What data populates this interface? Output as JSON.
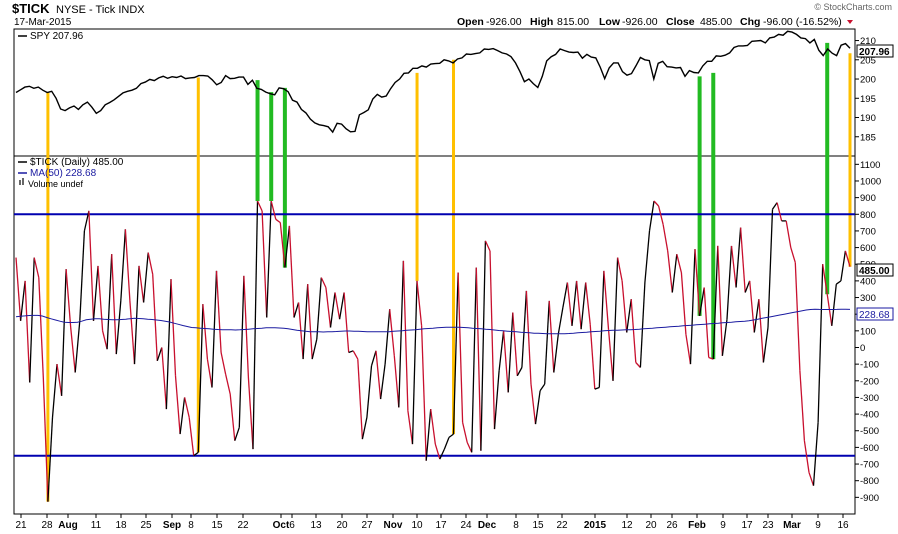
{
  "header": {
    "symbol": "$TICK",
    "description": "NYSE - Tick INDX",
    "date": "17-Mar-2015",
    "open_label": "Open",
    "open_value": "-926.00",
    "high_label": "High",
    "high_value": "815.00",
    "low_label": "Low",
    "low_value": "-926.00",
    "close_label": "Close",
    "close_value": "485.00",
    "chg_label": "Chg",
    "chg_value": "-96.00 (-16.52%)",
    "watermark": "© StockCharts.com"
  },
  "legend": {
    "spy": "SPY 207.96",
    "tick": "$TICK (Daily) 485.00",
    "ma": "MA(50) 228.68",
    "volume": "Volume undef"
  },
  "colors": {
    "frame": "#000000",
    "spy_line": "#000000",
    "tick_up": "#000000",
    "tick_down": "#c8102e",
    "ma_line": "#1a1aa0",
    "hline": "#0000b0",
    "marker_yellow": "#ffc000",
    "marker_green": "#22bb22",
    "grid": "#e6e6e6"
  },
  "chart_data": {
    "type": "line",
    "x_ticks": [
      "21",
      "28",
      "Aug",
      "11",
      "18",
      "25",
      "Sep",
      "8",
      "15",
      "22",
      "Oct",
      "6",
      "13",
      "20",
      "27",
      "Nov",
      "10",
      "17",
      "24",
      "Dec",
      "8",
      "15",
      "22",
      "2015",
      "12",
      "20",
      "26",
      "Feb",
      "9",
      "17",
      "23",
      "Mar",
      "9",
      "16"
    ],
    "upper": {
      "series_name": "SPY",
      "last_value": "207.96",
      "ylim": [
        180,
        213
      ],
      "y_ticks": [
        "185",
        "190",
        "195",
        "200",
        "205",
        "210"
      ],
      "values": [
        196.5,
        197.2,
        197.9,
        198.1,
        197.6,
        197.9,
        197.1,
        196.5,
        196.8,
        195.0,
        192.2,
        191.8,
        192.5,
        193.0,
        192.1,
        193.3,
        194.0,
        192.7,
        191.1,
        191.8,
        193.3,
        193.9,
        194.6,
        195.5,
        196.4,
        196.8,
        197.1,
        197.6,
        198.8,
        199.2,
        199.9,
        199.6,
        200.3,
        200.7,
        200.2,
        200.6,
        200.4,
        200.8,
        200.1,
        200.3,
        200.4,
        200.9,
        200.9,
        200.8,
        199.8,
        198.5,
        199.1,
        200.9,
        200.1,
        200.2,
        200.5,
        200.5,
        198.6,
        199.7,
        197.6,
        197.3,
        196.6,
        196.2,
        195.9,
        197.7,
        197.5,
        196.7,
        194.5,
        194.0,
        192.1,
        191.2,
        189.6,
        188.6,
        188.1,
        187.9,
        187.6,
        186.2,
        188.5,
        188.3,
        187.1,
        186.3,
        186.4,
        190.7,
        191.3,
        192.0,
        194.8,
        196.0,
        195.3,
        195.6,
        197.5,
        199.1,
        200.0,
        201.5,
        201.6,
        202.8,
        202.8,
        203.4,
        203.1,
        203.9,
        204.0,
        204.1,
        205.0,
        204.7,
        204.2,
        205.2,
        205.5,
        206.5,
        206.4,
        206.6,
        206.8,
        207.8,
        207.7,
        207.9,
        207.4,
        206.8,
        206.5,
        205.8,
        204.2,
        201.9,
        199.3,
        200.0,
        198.8,
        197.8,
        200.7,
        204.7,
        205.8,
        206.4,
        207.8,
        207.4,
        207.0,
        206.9,
        207.0,
        205.4,
        206.4,
        205.7,
        205.5,
        203.1,
        200.1,
        202.9,
        204.2,
        204.2,
        201.9,
        201.0,
        201.4,
        203.4,
        205.6,
        205.0,
        204.8,
        200.0,
        204.1,
        204.6,
        203.2,
        203.1,
        202.9,
        203.0,
        200.7,
        202.2,
        201.7,
        201.6,
        203.4,
        204.6,
        204.6,
        206.0,
        205.9,
        206.2,
        206.8,
        208.2,
        208.6,
        208.6,
        208.7,
        209.8,
        209.9,
        210.0,
        209.4,
        210.7,
        210.9,
        211.6,
        211.4,
        212.4,
        212.2,
        211.6,
        210.7,
        210.5,
        209.4,
        210.3,
        207.5,
        206.1,
        207.8,
        206.7,
        206.1,
        208.8,
        209.2,
        208.0
      ]
    },
    "lower": {
      "series_name": "$TICK (Daily)",
      "last_value": "485.00",
      "ma_name": "MA(50)",
      "ma_last": "228.68",
      "ylim": [
        -1000,
        1150
      ],
      "y_ticks": [
        "1100",
        "1000",
        "900",
        "800",
        "700",
        "600",
        "500",
        "400",
        "300",
        "200",
        "100",
        "0",
        "-100",
        "-200",
        "-300",
        "-400",
        "-500",
        "-600",
        "-700",
        "-800",
        "-900"
      ],
      "hlines": [
        800,
        -650
      ],
      "values": [
        540,
        160,
        400,
        -210,
        540,
        420,
        -180,
        -926,
        -420,
        -100,
        -290,
        470,
        120,
        -150,
        160,
        700,
        820,
        160,
        490,
        100,
        -10,
        560,
        -40,
        280,
        710,
        280,
        -100,
        490,
        270,
        570,
        440,
        -80,
        0,
        -370,
        410,
        -170,
        -520,
        -300,
        -420,
        -650,
        -630,
        260,
        -70,
        -240,
        460,
        -30,
        -160,
        -280,
        -560,
        -480,
        430,
        -180,
        -610,
        880,
        820,
        180,
        880,
        770,
        750,
        480,
        730,
        180,
        270,
        -70,
        380,
        -70,
        50,
        420,
        360,
        120,
        330,
        170,
        330,
        -30,
        -20,
        -70,
        -550,
        -420,
        -110,
        -20,
        -310,
        -100,
        230,
        -50,
        -360,
        520,
        -380,
        -580,
        400,
        130,
        -680,
        -370,
        -580,
        -670,
        -610,
        -540,
        -520,
        450,
        -450,
        -570,
        -630,
        480,
        -620,
        640,
        580,
        -490,
        -140,
        100,
        -270,
        210,
        -170,
        -120,
        340,
        -220,
        -460,
        -260,
        -220,
        280,
        -150,
        80,
        240,
        390,
        130,
        400,
        110,
        390,
        140,
        -250,
        -240,
        460,
        110,
        -200,
        540,
        400,
        90,
        290,
        -90,
        -120,
        390,
        700,
        880,
        850,
        740,
        580,
        330,
        560,
        450,
        80,
        -100,
        590,
        190,
        360,
        -60,
        -70,
        610,
        -50,
        170,
        610,
        360,
        720,
        330,
        400,
        90,
        290,
        -90,
        120,
        830,
        870,
        760,
        760,
        600,
        510,
        -140,
        -560,
        -750,
        -830,
        -450,
        500,
        320,
        130,
        380,
        400,
        580,
        485
      ],
      "ma_values": [
        185,
        188,
        190,
        192,
        193,
        193,
        189,
        180,
        172,
        165,
        158,
        152,
        150,
        150,
        152,
        158,
        166,
        170,
        172,
        172,
        170,
        168,
        167,
        166,
        168,
        170,
        173,
        175,
        174,
        172,
        170,
        168,
        165,
        162,
        158,
        153,
        146,
        139,
        132,
        126,
        120,
        118,
        116,
        114,
        112,
        110,
        108,
        107,
        106,
        106,
        105,
        106,
        108,
        110,
        112,
        114,
        116,
        118,
        118,
        118,
        117,
        115,
        112,
        108,
        104,
        100,
        97,
        95,
        94,
        94,
        93,
        94,
        95,
        96,
        98,
        99,
        99,
        98,
        97,
        96,
        95,
        94,
        94,
        94,
        94,
        95,
        97,
        99,
        101,
        103,
        105,
        107,
        110,
        112,
        114,
        116,
        118,
        120,
        121,
        122,
        122,
        121,
        120,
        118,
        116,
        114,
        112,
        110,
        108,
        105,
        102,
        100,
        98,
        96,
        94,
        92,
        90,
        88,
        86,
        85,
        84,
        83,
        82,
        82,
        82,
        83,
        84,
        86,
        88,
        90,
        92,
        94,
        96,
        98,
        100,
        102,
        103,
        104,
        105,
        106,
        107,
        108,
        110,
        112,
        114,
        116,
        118,
        120,
        122,
        124,
        126,
        128,
        130,
        132,
        134,
        136,
        138,
        140,
        142,
        144,
        146,
        148,
        150,
        152,
        154,
        156,
        158,
        160,
        165,
        170,
        175,
        180,
        185,
        190,
        195,
        200,
        205,
        210,
        215,
        220,
        225,
        228,
        230,
        229,
        228,
        228,
        228,
        229,
        230,
        230,
        229
      ],
      "markers_yellow_idx": [
        7,
        40,
        88,
        96,
        183
      ],
      "markers_green_idx": [
        53,
        56,
        59,
        150,
        153,
        178
      ]
    }
  }
}
